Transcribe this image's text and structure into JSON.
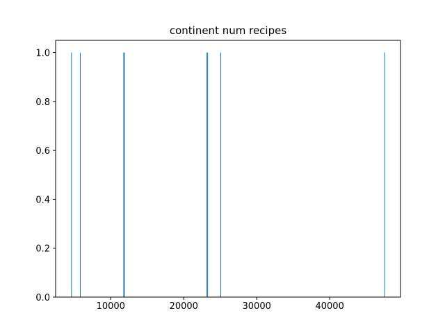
{
  "chart_data": {
    "type": "bar",
    "title": "continent num recipes",
    "xlabel": "",
    "ylabel": "",
    "xlim": [
      2450,
      49700
    ],
    "ylim": [
      0,
      1.05
    ],
    "x_ticks": [
      10000,
      20000,
      30000,
      40000
    ],
    "x_tick_labels": [
      "10000",
      "20000",
      "30000",
      "40000"
    ],
    "y_ticks": [
      0.0,
      0.2,
      0.4,
      0.6,
      0.8,
      1.0
    ],
    "y_tick_labels": [
      "0.0",
      "0.2",
      "0.4",
      "0.6",
      "0.8",
      "1.0"
    ],
    "bar_color": "#1f77b4",
    "bin_width": 43,
    "bars": [
      {
        "x": 4600,
        "count": 1
      },
      {
        "x": 5800,
        "count": 1
      },
      {
        "x": 11750,
        "count": 1
      },
      {
        "x": 11850,
        "count": 1
      },
      {
        "x": 23150,
        "count": 1
      },
      {
        "x": 23250,
        "count": 1
      },
      {
        "x": 25050,
        "count": 1
      },
      {
        "x": 47500,
        "count": 1
      }
    ],
    "grid": false,
    "legend": "none"
  }
}
